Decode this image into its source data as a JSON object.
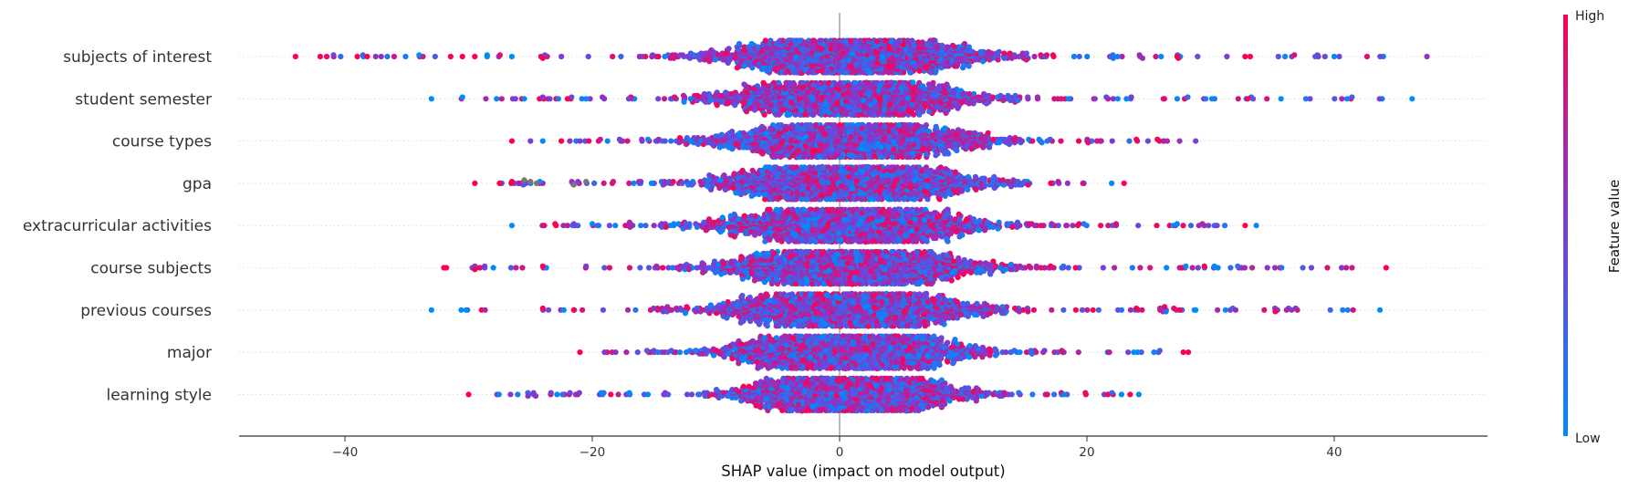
{
  "chart_data": {
    "type": "scatter",
    "subtype": "shap-beeswarm",
    "xlabel": "SHAP value (impact on model output)",
    "xlim": [
      -48.5,
      52.5
    ],
    "xticks": [
      -40,
      -20,
      0,
      20,
      40
    ],
    "xtick_labels": [
      "−40",
      "−20",
      "0",
      "20",
      "40"
    ],
    "colorbar": {
      "title": "Feature value",
      "high_label": "High",
      "low_label": "Low",
      "high_color": "#ff0051",
      "mid_color": "#7a3dd8",
      "low_color": "#008bfb"
    },
    "features": [
      {
        "name": "subjects of interest",
        "min": -44,
        "max": 47.5,
        "core": 14,
        "outliers": [
          [
            -44,
            1
          ],
          [
            -42,
            1
          ],
          [
            -39,
            1
          ],
          [
            -38.2,
            1
          ],
          [
            -34,
            0
          ],
          [
            -30.5,
            1
          ],
          [
            -29.5,
            1
          ],
          [
            -28.5,
            0
          ],
          [
            -26.5,
            0
          ],
          [
            -24,
            1
          ],
          [
            -22.5,
            0.5
          ],
          [
            24.5,
            0.6
          ],
          [
            26,
            0
          ],
          [
            27.3,
            1
          ],
          [
            32.8,
            1
          ],
          [
            33.2,
            1
          ],
          [
            47.5,
            0.6
          ]
        ]
      },
      {
        "name": "student semester",
        "min": -33,
        "max": 46.3,
        "core": 13,
        "outliers": [
          [
            -33,
            0
          ],
          [
            -30.5,
            0
          ],
          [
            -25.5,
            0
          ],
          [
            -24,
            0.5
          ],
          [
            -22,
            1
          ],
          [
            -20.5,
            0
          ],
          [
            22.5,
            0
          ],
          [
            23.2,
            0
          ],
          [
            33,
            1
          ],
          [
            35.7,
            0
          ],
          [
            46.3,
            0
          ]
        ]
      },
      {
        "name": "course types",
        "min": -26.5,
        "max": 28.8,
        "core": 13,
        "outliers": [
          [
            -26.5,
            1
          ],
          [
            -25,
            0.5
          ],
          [
            -24,
            0
          ],
          [
            -22.5,
            1
          ],
          [
            -21,
            0.5
          ],
          [
            24,
            1
          ],
          [
            25.7,
            1
          ],
          [
            27.5,
            0.6
          ],
          [
            28.8,
            0.5
          ]
        ]
      },
      {
        "name": "gpa",
        "min": -29.5,
        "max": 23,
        "core": 13,
        "outliers": [
          [
            -29.5,
            1
          ],
          [
            -27.5,
            1
          ],
          [
            -26.5,
            1
          ],
          [
            -25.5,
            -1
          ],
          [
            -25,
            -1
          ],
          [
            -24.5,
            -1
          ],
          [
            -21.5,
            -1
          ],
          [
            -20.5,
            -1
          ],
          [
            22,
            0
          ],
          [
            23,
            1
          ]
        ]
      },
      {
        "name": "extracurricular activities",
        "min": -26.5,
        "max": 33.7,
        "core": 13,
        "outliers": [
          [
            -26.5,
            0
          ],
          [
            -23,
            1
          ],
          [
            -21.5,
            0.5
          ],
          [
            -20,
            0
          ],
          [
            27,
            0
          ],
          [
            27.3,
            0
          ],
          [
            32.8,
            1
          ],
          [
            33.7,
            0
          ]
        ]
      },
      {
        "name": "course subjects",
        "min": -32,
        "max": 44.2,
        "core": 13,
        "outliers": [
          [
            -32,
            1
          ],
          [
            -31.8,
            1
          ],
          [
            -29.5,
            1
          ],
          [
            -28.7,
            0.5
          ],
          [
            -28,
            0
          ],
          [
            -24,
            1
          ],
          [
            28,
            0
          ],
          [
            29.5,
            1
          ],
          [
            30.3,
            0
          ],
          [
            30.6,
            0
          ],
          [
            35.2,
            0.6
          ],
          [
            44.2,
            1
          ]
        ]
      },
      {
        "name": "previous courses",
        "min": -33,
        "max": 43.7,
        "core": 13,
        "outliers": [
          [
            -33,
            0
          ],
          [
            -30.6,
            0
          ],
          [
            -30.2,
            0
          ],
          [
            -24,
            1
          ],
          [
            -22.3,
            0
          ],
          [
            -21.5,
            1
          ],
          [
            24,
            1
          ],
          [
            27.5,
            1
          ],
          [
            28.8,
            0
          ],
          [
            31.2,
            0
          ],
          [
            43.7,
            0
          ]
        ]
      },
      {
        "name": "major",
        "min": -21,
        "max": 28.2,
        "core": 12,
        "outliers": [
          [
            -21,
            1
          ],
          [
            -19,
            0.5
          ],
          [
            23.8,
            0
          ],
          [
            24.1,
            0
          ],
          [
            27.8,
            1
          ],
          [
            28.2,
            1
          ]
        ]
      },
      {
        "name": "learning style",
        "min": -30,
        "max": 24.2,
        "core": 11,
        "outliers": [
          [
            -30,
            1
          ],
          [
            -18.5,
            1
          ],
          [
            -17,
            0
          ],
          [
            -15.5,
            0
          ],
          [
            22.8,
            0
          ],
          [
            23.5,
            1
          ],
          [
            24.2,
            0
          ]
        ]
      }
    ]
  }
}
